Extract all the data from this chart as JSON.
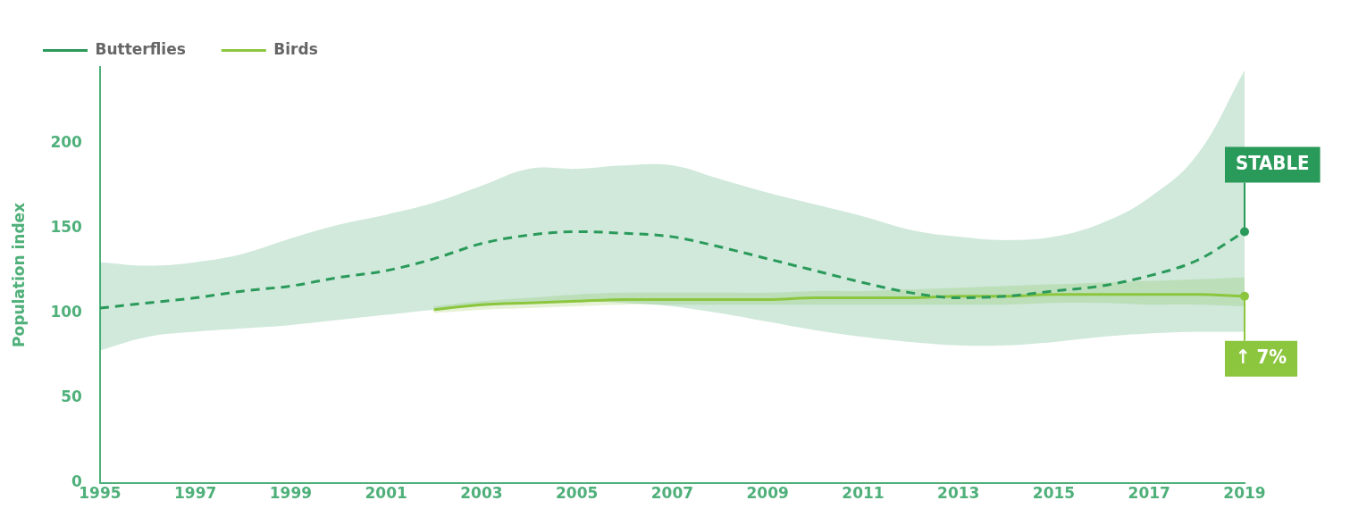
{
  "chart_data": {
    "type": "line",
    "ylabel": "Population index",
    "x": [
      1995,
      1996,
      1997,
      1998,
      1999,
      2000,
      2001,
      2002,
      2003,
      2004,
      2005,
      2006,
      2007,
      2008,
      2009,
      2010,
      2011,
      2012,
      2013,
      2014,
      2015,
      2016,
      2017,
      2018,
      2019
    ],
    "xlim": [
      1995,
      2019
    ],
    "xticks": [
      1995,
      1997,
      1999,
      2001,
      2003,
      2005,
      2007,
      2009,
      2011,
      2013,
      2015,
      2017,
      2019
    ],
    "ylim": [
      0,
      245
    ],
    "yticks": [
      0,
      50,
      100,
      150,
      200
    ],
    "grid": false,
    "legend": "top left",
    "series": [
      {
        "name": "Butterflies",
        "color": "#2a9a5a",
        "line_style": "dashed",
        "values": [
          103,
          106,
          109,
          113,
          116,
          121,
          125,
          132,
          141,
          146,
          148,
          147,
          145,
          139,
          132,
          125,
          118,
          112,
          109,
          110,
          113,
          116,
          122,
          131,
          148
        ],
        "lower": [
          78,
          86,
          89,
          91,
          93,
          96,
          99,
          102,
          104,
          106,
          107,
          106,
          104,
          100,
          95,
          90,
          86,
          83,
          81,
          81,
          83,
          86,
          88,
          89,
          89
        ],
        "upper": [
          130,
          128,
          130,
          135,
          144,
          152,
          158,
          165,
          175,
          185,
          185,
          187,
          187,
          179,
          171,
          164,
          157,
          149,
          145,
          143,
          145,
          153,
          168,
          193,
          243
        ]
      },
      {
        "name": "Birds",
        "color": "#8cc63f",
        "line_style": "solid",
        "x": [
          2002,
          2003,
          2004,
          2005,
          2006,
          2007,
          2008,
          2009,
          2010,
          2011,
          2012,
          2013,
          2014,
          2015,
          2016,
          2017,
          2018,
          2019
        ],
        "values": [
          102,
          105,
          106,
          107,
          108,
          108,
          108,
          108,
          109,
          109,
          109,
          110,
          110,
          111,
          111,
          111,
          111,
          110
        ],
        "lower": [
          100,
          102,
          103,
          104,
          105,
          105,
          105,
          105,
          105,
          105,
          105,
          105,
          105,
          106,
          106,
          105,
          105,
          104
        ],
        "upper": [
          104,
          107,
          109,
          111,
          112,
          112,
          112,
          112,
          113,
          113,
          114,
          115,
          116,
          117,
          118,
          119,
          120,
          121
        ]
      }
    ],
    "annotations": [
      {
        "text": "STABLE",
        "x": 2019,
        "y": 148
      },
      {
        "text": "↑ 7%",
        "x": 2019,
        "y": 110
      }
    ]
  }
}
